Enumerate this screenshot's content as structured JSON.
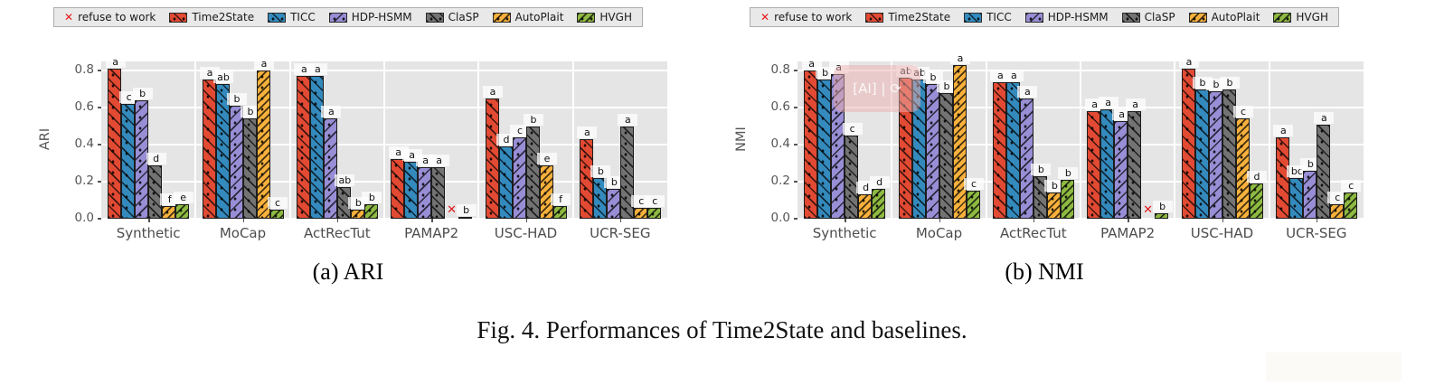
{
  "figure": {
    "caption": "Fig. 4.  Performances of Time2State and baselines.",
    "watermark_text": "[AI] | ⟳"
  },
  "legend": {
    "refuse_label": "refuse to work",
    "refuse_marker_glyph": "✕",
    "series_labels": [
      "Time2State",
      "TICC",
      "HDP-HSMM",
      "ClaSP",
      "AutoPlait",
      "HVGH"
    ]
  },
  "colors": {
    "time2state": "#E24A33",
    "ticc": "#348ABD",
    "hdp_hsmm": "#988ED5",
    "clasp": "#737373",
    "autoplait": "#F8B13C",
    "hvgh": "#8EBA42",
    "refuse_x": "#E0191B",
    "panel_background": "#E5E5E5",
    "gridline": "#FFFFFF",
    "tick_text": "#555555"
  },
  "chart_data": [
    {
      "type": "bar",
      "title": "(a) ARI",
      "ylabel": "ARI",
      "xlabel": "",
      "ylim": [
        0,
        0.85
      ],
      "yticks": [
        0,
        0.2,
        0.4,
        0.6,
        0.8
      ],
      "grid": true,
      "legend_position": "top",
      "categories": [
        "Synthetic",
        "MoCap",
        "ActRecTut",
        "PAMAP2",
        "USC-HAD",
        "UCR-SEG"
      ],
      "series": [
        {
          "name": "Time2State",
          "color": "#E24A33",
          "values": [
            0.81,
            0.75,
            0.77,
            0.32,
            0.65,
            0.43
          ],
          "sig_labels": [
            "a",
            "a",
            "a",
            "a",
            "a",
            "a"
          ]
        },
        {
          "name": "TICC",
          "color": "#348ABD",
          "values": [
            0.62,
            0.73,
            0.77,
            0.31,
            0.39,
            0.22
          ],
          "sig_labels": [
            "c",
            "ab",
            "a",
            "a",
            "d",
            "b"
          ]
        },
        {
          "name": "HDP-HSMM",
          "color": "#988ED5",
          "values": [
            0.64,
            0.61,
            0.54,
            0.28,
            0.44,
            0.16
          ],
          "sig_labels": [
            "b",
            "b",
            "a",
            "a",
            "c",
            "b"
          ]
        },
        {
          "name": "ClaSP",
          "color": "#737373",
          "values": [
            0.29,
            0.54,
            0.17,
            0.28,
            0.5,
            0.5
          ],
          "sig_labels": [
            "d",
            "b",
            "ab",
            "a",
            "b",
            "a"
          ]
        },
        {
          "name": "AutoPlait",
          "color": "#F8B13C",
          "values": [
            0.07,
            0.8,
            0.05,
            null,
            0.29,
            0.06
          ],
          "sig_labels": [
            "f",
            "a",
            "b",
            "x",
            "e",
            "c"
          ]
        },
        {
          "name": "HVGH",
          "color": "#8EBA42",
          "values": [
            0.08,
            0.05,
            0.08,
            0.01,
            0.07,
            0.06
          ],
          "sig_labels": [
            "e",
            "c",
            "b",
            "b",
            "f",
            "c"
          ]
        }
      ],
      "refused": [
        {
          "series": "AutoPlait",
          "category": "PAMAP2"
        }
      ]
    },
    {
      "type": "bar",
      "title": "(b) NMI",
      "ylabel": "NMI",
      "xlabel": "",
      "ylim": [
        0,
        0.85
      ],
      "yticks": [
        0,
        0.2,
        0.4,
        0.6,
        0.8
      ],
      "grid": true,
      "legend_position": "top",
      "categories": [
        "Synthetic",
        "MoCap",
        "ActRecTut",
        "PAMAP2",
        "USC-HAD",
        "UCR-SEG"
      ],
      "series": [
        {
          "name": "Time2State",
          "color": "#E24A33",
          "values": [
            0.8,
            0.76,
            0.74,
            0.58,
            0.81,
            0.44
          ],
          "sig_labels": [
            "a",
            "ab",
            "a",
            "a",
            "a",
            "a"
          ]
        },
        {
          "name": "TICC",
          "color": "#348ABD",
          "values": [
            0.75,
            0.75,
            0.74,
            0.59,
            0.7,
            0.22
          ],
          "sig_labels": [
            "b",
            "ab",
            "a",
            "a",
            "b",
            "bc"
          ]
        },
        {
          "name": "HDP-HSMM",
          "color": "#988ED5",
          "values": [
            0.78,
            0.73,
            0.65,
            0.53,
            0.69,
            0.26
          ],
          "sig_labels": [
            "a",
            "b",
            "a",
            "a",
            "b",
            "b"
          ]
        },
        {
          "name": "ClaSP",
          "color": "#737373",
          "values": [
            0.45,
            0.68,
            0.23,
            0.58,
            0.7,
            0.51
          ],
          "sig_labels": [
            "c",
            "b",
            "b",
            "a",
            "b",
            "a"
          ]
        },
        {
          "name": "AutoPlait",
          "color": "#F8B13C",
          "values": [
            0.13,
            0.83,
            0.14,
            null,
            0.54,
            0.08
          ],
          "sig_labels": [
            "d",
            "a",
            "b",
            "x",
            "c",
            "c"
          ]
        },
        {
          "name": "HVGH",
          "color": "#8EBA42",
          "values": [
            0.16,
            0.15,
            0.21,
            0.03,
            0.19,
            0.14
          ],
          "sig_labels": [
            "d",
            "c",
            "b",
            "b",
            "d",
            "c"
          ]
        }
      ],
      "refused": [
        {
          "series": "AutoPlait",
          "category": "PAMAP2"
        }
      ]
    }
  ]
}
